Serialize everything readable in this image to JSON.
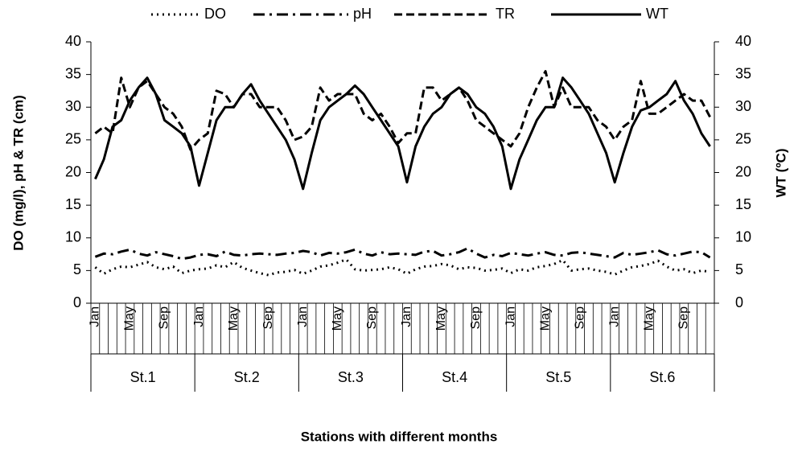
{
  "chart_data": {
    "type": "line",
    "x_label": "Stations with different months",
    "y_label": "DO (mg/l), pH & TR (cm)",
    "y2_label": "WT (ºC)",
    "categories": [
      "Jan",
      null,
      null,
      null,
      "May",
      null,
      null,
      null,
      "Sep",
      null,
      null,
      null,
      "Jan",
      null,
      null,
      null,
      "May",
      null,
      null,
      null,
      "Sep",
      null,
      null,
      null,
      "Jan",
      null,
      null,
      null,
      "May",
      null,
      null,
      null,
      "Sep",
      null,
      null,
      null,
      "Jan",
      null,
      null,
      null,
      "May",
      null,
      null,
      null,
      "Sep",
      null,
      null,
      null,
      "Jan",
      null,
      null,
      null,
      "May",
      null,
      null,
      null,
      "Sep",
      null,
      null,
      null,
      "Jan",
      null,
      null,
      null,
      "May",
      null,
      null,
      null,
      "Sep",
      null,
      null,
      null
    ],
    "groups": [
      "St.1",
      "St.2",
      "St.3",
      "St.4",
      "St.5",
      "St.6"
    ],
    "ylim": [
      0,
      40
    ],
    "yticks": [
      0,
      5,
      10,
      15,
      20,
      25,
      30,
      35,
      40
    ],
    "y2lim": [
      0,
      40
    ],
    "y2ticks": [
      0,
      5,
      10,
      15,
      20,
      25,
      30,
      35,
      40
    ],
    "legend": "top",
    "series": [
      {
        "name": "DO",
        "color": "#000000",
        "style": "dotted",
        "values": [
          5.5,
          4.5,
          5.2,
          5.6,
          5.5,
          5.9,
          6.3,
          5.5,
          5.2,
          5.6,
          4.6,
          5.0,
          5.2,
          5.3,
          5.8,
          5.5,
          6.3,
          5.4,
          5.0,
          4.6,
          4.3,
          4.7,
          4.8,
          5.1,
          4.5,
          5.0,
          5.6,
          5.8,
          6.2,
          6.7,
          5.2,
          5.0,
          5.1,
          5.2,
          5.5,
          5.2,
          4.5,
          5.2,
          5.6,
          5.7,
          6.0,
          5.8,
          5.2,
          5.5,
          5.4,
          5.0,
          5.1,
          5.3,
          4.6,
          5.2,
          5.0,
          5.5,
          5.7,
          6.0,
          6.6,
          5.0,
          5.2,
          5.3,
          5.0,
          4.8,
          4.4,
          5.0,
          5.5,
          5.7,
          6.0,
          6.5,
          5.6,
          5.0,
          5.2,
          4.6,
          5.0,
          4.8
        ]
      },
      {
        "name": "pH",
        "color": "#000000",
        "style": "dashdot",
        "values": [
          7.1,
          7.6,
          7.5,
          7.9,
          8.2,
          7.6,
          7.3,
          7.8,
          7.5,
          7.2,
          6.8,
          7.0,
          7.4,
          7.5,
          7.2,
          7.9,
          7.4,
          7.3,
          7.5,
          7.6,
          7.5,
          7.4,
          7.6,
          7.7,
          8.0,
          7.8,
          7.3,
          7.7,
          7.6,
          7.8,
          8.2,
          7.6,
          7.3,
          7.8,
          7.5,
          7.6,
          7.5,
          7.4,
          7.9,
          8.0,
          7.3,
          7.5,
          7.8,
          8.4,
          7.6,
          7.0,
          7.4,
          7.2,
          7.7,
          7.5,
          7.3,
          7.6,
          7.8,
          7.4,
          7.3,
          7.7,
          7.8,
          7.6,
          7.4,
          7.2,
          7.0,
          7.7,
          7.4,
          7.6,
          7.8,
          8.1,
          7.5,
          7.3,
          7.6,
          7.9,
          7.8,
          7.0
        ]
      },
      {
        "name": "TR",
        "color": "#000000",
        "style": "dashed",
        "values": [
          26,
          27,
          26,
          34.5,
          30,
          33,
          34,
          32,
          30,
          29,
          27,
          23.5,
          25,
          26,
          32.5,
          32,
          30,
          32,
          32,
          30,
          30,
          30,
          28,
          25,
          25.5,
          27,
          33,
          31,
          32,
          32,
          32,
          29,
          28,
          29,
          27,
          24.5,
          26,
          26,
          33,
          33,
          31,
          32,
          33,
          31,
          28,
          27,
          26,
          25,
          24,
          26,
          30,
          33,
          35.5,
          30,
          33,
          30,
          30,
          30,
          28,
          27,
          25,
          27,
          28,
          34,
          29,
          29,
          30,
          31,
          32,
          31,
          31,
          28.5
        ]
      },
      {
        "name": "WT",
        "color": "#000000",
        "style": "solid",
        "axis": "y2",
        "values": [
          19,
          22,
          27,
          28,
          31,
          33,
          34.5,
          32,
          28,
          27,
          26,
          24,
          18,
          23,
          28,
          30,
          30,
          32,
          33.5,
          31,
          29,
          27,
          25,
          22,
          17.5,
          23,
          28,
          30,
          31,
          32,
          33.3,
          32,
          30,
          28,
          26,
          24,
          18.5,
          24,
          27,
          29,
          30,
          32,
          33,
          32,
          30,
          29,
          27,
          24,
          17.5,
          22,
          25,
          28,
          30,
          30,
          34.5,
          33,
          31,
          29,
          26,
          23,
          18.5,
          23,
          27,
          29.5,
          30,
          31,
          32,
          34,
          31,
          29,
          26,
          24
        ]
      }
    ]
  }
}
